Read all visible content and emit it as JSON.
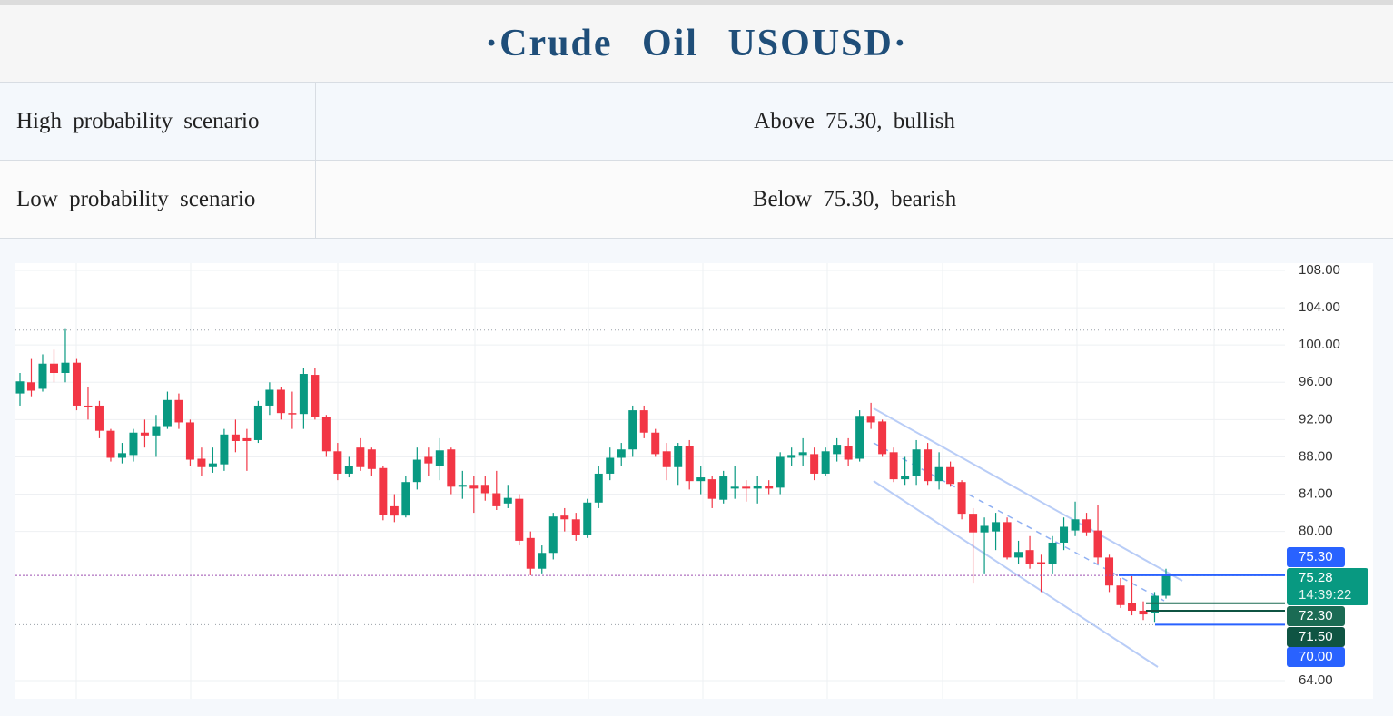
{
  "header": {
    "title": "·Crude Oil USOUSD·"
  },
  "table": {
    "rows": [
      [
        "High probability scenario",
        "Above 75.30, bullish"
      ],
      [
        "Low probability scenario",
        "Below 75.30, bearish"
      ]
    ]
  },
  "chart_data": {
    "type": "candlestick",
    "up_color": "#089981",
    "down_color": "#f23645",
    "open": [
      94.8,
      96,
      95.3,
      98,
      97,
      98.1,
      93.5,
      93.5,
      90.8,
      87.9,
      88.2,
      90.6,
      90.3,
      91.3,
      94.1,
      91.7,
      87.8,
      86.9,
      87.2,
      90.4,
      90,
      89.8,
      93.5,
      95.2,
      92.7,
      92.6,
      96.8,
      92.3,
      88.6,
      86.2,
      89,
      88.8,
      86.8,
      82.7,
      81.7,
      85.3,
      88,
      87,
      88.8,
      84.8,
      85,
      85,
      84.1,
      83,
      83.5,
      79.3,
      76,
      77.7,
      81.7,
      81.3,
      79.6,
      83.1,
      86.2,
      87.9,
      88.8,
      93,
      90.6,
      88.6,
      86.9,
      89.2,
      85.4,
      85.6,
      83.4,
      84.6,
      84.8,
      84.6,
      84.9,
      84.7,
      87.9,
      88.2,
      88.3,
      86.2,
      88.3,
      89.2,
      87.8,
      92.4,
      91.8,
      88.5,
      85.6,
      86,
      88.8,
      85.4,
      86.9,
      85.3,
      81.9,
      79.9,
      80,
      81,
      77.2,
      78,
      76.7,
      76.5,
      78.8,
      80.1,
      81.3,
      80.1,
      77.2,
      74.2,
      72.3,
      71.5,
      71.3,
      73.1
    ],
    "high": [
      97,
      98.5,
      99,
      99.5,
      101.8,
      98.5,
      95.5,
      94,
      91,
      89.5,
      91,
      92,
      92.5,
      95,
      94.8,
      92,
      89,
      89,
      91,
      92,
      91,
      94,
      96,
      95.5,
      95,
      97.5,
      97.5,
      92.5,
      89.5,
      88,
      90,
      89,
      87,
      84,
      86,
      89,
      89,
      90,
      89,
      86.5,
      86,
      86,
      86.5,
      85,
      84,
      80,
      78.5,
      82,
      82.5,
      82,
      83.5,
      87,
      89,
      89.5,
      93.5,
      93.5,
      91,
      89.5,
      89.5,
      89.8,
      87,
      86,
      86.5,
      87,
      85.5,
      86,
      85.5,
      88.5,
      89,
      90,
      89,
      89,
      90,
      90,
      93,
      93.8,
      92,
      89,
      88,
      89.8,
      89.5,
      88.5,
      87.5,
      85.5,
      82.5,
      81.5,
      82,
      81.5,
      79,
      79.5,
      77.5,
      79.5,
      81.5,
      83.2,
      82,
      82.8,
      77.5,
      75,
      75.2,
      72.5,
      73.5,
      76
    ],
    "low": [
      93.5,
      94.5,
      95,
      96,
      96,
      93,
      92,
      90,
      87.5,
      87.3,
      87.5,
      89,
      88,
      91,
      91,
      87,
      86,
      86.3,
      86.5,
      88.5,
      86.5,
      89.5,
      92.5,
      92,
      91,
      91,
      92,
      88,
      85.5,
      85.8,
      86.5,
      86,
      81.2,
      81,
      81.5,
      84.5,
      86,
      85.5,
      84,
      83.5,
      82,
      83.3,
      82.3,
      82.5,
      78.5,
      75.3,
      75.5,
      77,
      80,
      79,
      79.3,
      82.5,
      85.5,
      87,
      88,
      90,
      88,
      85.5,
      85,
      84.5,
      84,
      82.5,
      83,
      83.5,
      83.2,
      83,
      84,
      84,
      87,
      87,
      85.5,
      86,
      87.5,
      87,
      87.5,
      91,
      88,
      85.3,
      85,
      85,
      85,
      84.5,
      84.8,
      81.3,
      74.5,
      75.5,
      78,
      77,
      76.5,
      76,
      73.5,
      75.5,
      78,
      79.5,
      79.5,
      76.5,
      73.5,
      71.8,
      71,
      70.5,
      70.3,
      72.8
    ],
    "close": [
      96.1,
      95.1,
      98,
      97,
      98.1,
      93.5,
      93.3,
      90.8,
      87.9,
      88.4,
      90.6,
      90.3,
      91.3,
      94.1,
      91.7,
      87.7,
      86.9,
      87.3,
      90.4,
      89.7,
      89.7,
      93.5,
      95.2,
      92.7,
      92.6,
      96.9,
      92.3,
      88.6,
      86.2,
      87,
      86.9,
      86.7,
      81.8,
      81.7,
      85.3,
      87.7,
      87.3,
      88.7,
      84.8,
      85,
      84.6,
      84.1,
      82.7,
      83.6,
      79,
      76,
      77.7,
      81.6,
      81.3,
      79.6,
      83.1,
      86.2,
      87.9,
      88.8,
      93,
      90.6,
      88.3,
      86.9,
      89.2,
      85.4,
      85.8,
      83.5,
      85.9,
      84.8,
      84.6,
      84.9,
      84.6,
      88,
      88.2,
      88.5,
      86.2,
      88.6,
      89.3,
      87.7,
      92.4,
      91.7,
      88.3,
      85.6,
      86,
      88.8,
      85.4,
      86.9,
      85.1,
      81.9,
      79.9,
      80.6,
      81,
      77.2,
      77.8,
      76.5,
      76.6,
      78.8,
      80.5,
      81.3,
      79.9,
      77.2,
      74.2,
      72.1,
      71.5,
      71.1,
      73.1,
      75.28
    ],
    "ylim": [
      64,
      108
    ],
    "yticks": [
      {
        "value": 108,
        "label": "108.00"
      },
      {
        "value": 104,
        "label": "104.00"
      },
      {
        "value": 100,
        "label": "100.00"
      },
      {
        "value": 96,
        "label": "96.00"
      },
      {
        "value": 92,
        "label": "92.00"
      },
      {
        "value": 88,
        "label": "88.00"
      },
      {
        "value": 84,
        "label": "84.00"
      },
      {
        "value": 80,
        "label": "80.00"
      },
      {
        "value": 64,
        "label": "64.00"
      }
    ],
    "grid": true,
    "price_lines": [
      {
        "value": 75.3,
        "label": "75.30",
        "color": "#2962ff"
      },
      {
        "value": 72.3,
        "label": "72.30",
        "color": "#1b6b54"
      },
      {
        "value": 71.5,
        "label": "71.50",
        "color": "#0f5443"
      },
      {
        "value": 70,
        "label": "70.00",
        "color": "#2962ff"
      }
    ],
    "last_price": 75.28,
    "last_price_color": "#089981",
    "countdown": "14:39:22",
    "dotted_levels": [
      101.6,
      70
    ]
  }
}
